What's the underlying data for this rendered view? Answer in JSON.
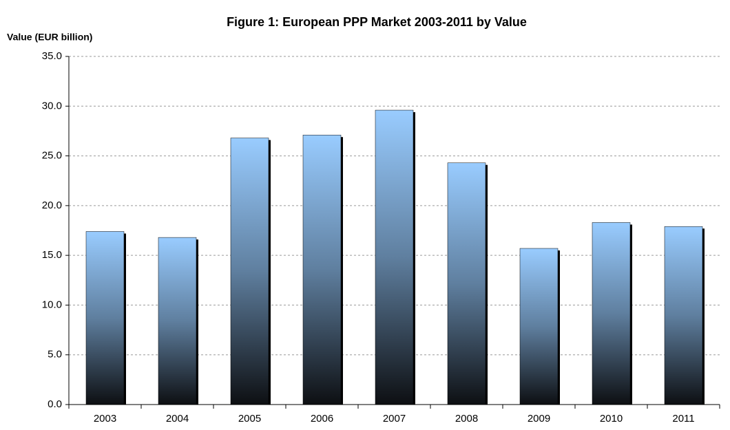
{
  "chart_data": {
    "type": "bar",
    "title": "Figure 1: European PPP Market 2003-2011 by Value",
    "y_label": "Value (EUR billion)",
    "categories": [
      "2003",
      "2004",
      "2005",
      "2006",
      "2007",
      "2008",
      "2009",
      "2010",
      "2011"
    ],
    "values": [
      17.4,
      16.8,
      26.8,
      27.1,
      29.6,
      24.3,
      15.7,
      18.3,
      17.9
    ],
    "color": "#99ccff",
    "ylim": [
      0,
      35
    ],
    "yticks": [
      {
        "value": 0,
        "label": "0.0"
      },
      {
        "value": 5,
        "label": "5.0"
      },
      {
        "value": 10,
        "label": "10.0"
      },
      {
        "value": 15,
        "label": "15.0"
      },
      {
        "value": 20,
        "label": "20.0"
      },
      {
        "value": 25,
        "label": "25.0"
      },
      {
        "value": 30,
        "label": "30.0"
      },
      {
        "value": 35,
        "label": "35.0"
      }
    ],
    "grid": true
  }
}
